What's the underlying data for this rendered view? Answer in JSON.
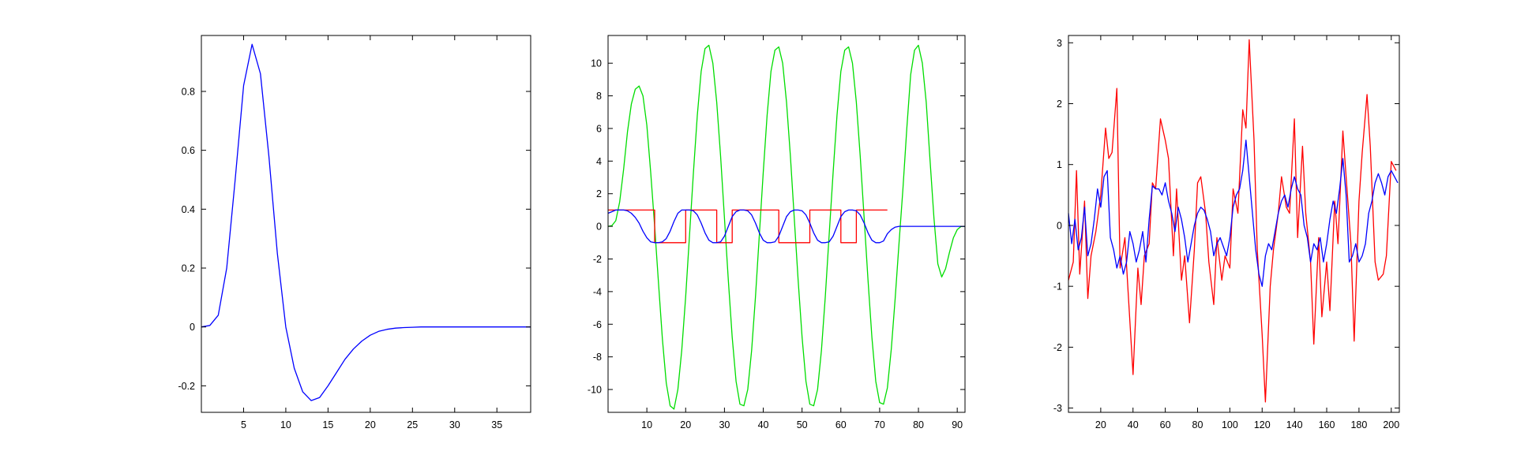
{
  "chart_data": [
    {
      "type": "line",
      "xlim": [
        0,
        39
      ],
      "ylim": [
        -0.29,
        0.99
      ],
      "xticks": [
        5,
        10,
        15,
        20,
        25,
        30,
        35
      ],
      "yticks": [
        -0.2,
        0,
        0.2,
        0.4,
        0.6,
        0.8
      ],
      "ytick_labels": [
        "-0.2",
        "0",
        "0.2",
        "0.4",
        "0.6",
        "0.8"
      ],
      "series": [
        {
          "color": "#0000ff",
          "x": [
            0,
            1,
            2,
            3,
            4,
            5,
            6,
            7,
            8,
            9,
            10,
            11,
            12,
            13,
            14,
            15,
            16,
            17,
            18,
            19,
            20,
            21,
            22,
            23,
            24,
            25,
            26,
            27,
            28,
            29,
            30,
            31,
            32,
            33,
            34,
            35,
            36,
            37,
            38,
            39
          ],
          "y": [
            0.0,
            0.005,
            0.04,
            0.2,
            0.5,
            0.82,
            0.96,
            0.86,
            0.58,
            0.25,
            0.0,
            -0.14,
            -0.22,
            -0.25,
            -0.24,
            -0.2,
            -0.155,
            -0.11,
            -0.075,
            -0.048,
            -0.028,
            -0.015,
            -0.008,
            -0.004,
            -0.002,
            -0.001,
            0,
            0,
            0,
            0,
            0,
            0,
            0,
            0,
            0,
            0,
            0,
            0,
            0,
            0
          ]
        }
      ]
    },
    {
      "type": "line",
      "xlim": [
        0,
        92
      ],
      "ylim": [
        -11.4,
        11.7
      ],
      "xticks": [
        10,
        20,
        30,
        40,
        50,
        60,
        70,
        80,
        90
      ],
      "yticks": [
        -10,
        -8,
        -6,
        -4,
        -2,
        0,
        2,
        4,
        6,
        8,
        10
      ],
      "ytick_labels": [
        "-10",
        "-8",
        "-6",
        "-4",
        "-2",
        "0",
        "2",
        "4",
        "6",
        "8",
        "10"
      ],
      "series": [
        {
          "color": "#00dd00",
          "x": [
            0,
            1,
            2,
            3,
            4,
            5,
            6,
            7,
            8,
            9,
            10,
            11,
            12,
            13,
            14,
            15,
            16,
            17,
            18,
            19,
            20,
            21,
            22,
            23,
            24,
            25,
            26,
            27,
            28,
            29,
            30,
            31,
            32,
            33,
            34,
            35,
            36,
            37,
            38,
            39,
            40,
            41,
            42,
            43,
            44,
            45,
            46,
            47,
            48,
            49,
            50,
            51,
            52,
            53,
            54,
            55,
            56,
            57,
            58,
            59,
            60,
            61,
            62,
            63,
            64,
            65,
            66,
            67,
            68,
            69,
            70,
            71,
            72,
            73,
            74,
            75,
            76,
            77,
            78,
            79,
            80,
            81,
            82,
            83,
            84,
            85,
            86,
            87,
            88,
            89,
            90,
            91,
            92
          ],
          "y": [
            0.0,
            0.05,
            0.35,
            1.5,
            3.5,
            5.8,
            7.5,
            8.4,
            8.6,
            8.0,
            6.2,
            3.3,
            0.0,
            -3.5,
            -6.9,
            -9.6,
            -11.0,
            -11.2,
            -10.0,
            -7.6,
            -4.3,
            -0.5,
            3.3,
            6.8,
            9.5,
            10.9,
            11.1,
            10.0,
            7.6,
            4.3,
            0.5,
            -3.3,
            -6.8,
            -9.5,
            -10.9,
            -11.0,
            -10.0,
            -7.6,
            -4.3,
            -0.5,
            3.3,
            6.8,
            9.5,
            10.8,
            11.0,
            10.0,
            7.6,
            4.3,
            0.5,
            -3.3,
            -6.8,
            -9.5,
            -10.9,
            -11.0,
            -10.0,
            -7.6,
            -4.3,
            -0.5,
            3.3,
            6.8,
            9.5,
            10.8,
            11.0,
            10.0,
            7.6,
            4.3,
            0.5,
            -3.3,
            -6.8,
            -9.5,
            -10.8,
            -10.9,
            -9.9,
            -7.5,
            -4.4,
            -1.0,
            2.3,
            6.0,
            9.3,
            10.8,
            11.1,
            10.0,
            7.6,
            4.0,
            0.5,
            -2.3,
            -3.1,
            -2.6,
            -1.6,
            -0.7,
            -0.2,
            0.0,
            0.0
          ]
        },
        {
          "color": "#ff0000",
          "x": [
            0,
            4,
            4,
            12,
            12,
            16,
            16,
            20,
            20,
            28,
            28,
            32,
            32,
            36,
            36,
            44,
            44,
            48,
            48,
            52,
            52,
            60,
            60,
            64,
            64,
            68,
            68,
            72
          ],
          "y": [
            1,
            1,
            1,
            1,
            -1,
            -1,
            -1,
            -1,
            1,
            1,
            -1,
            -1,
            1,
            1,
            1,
            1,
            -1,
            -1,
            -1,
            -1,
            1,
            1,
            -1,
            -1,
            1,
            1,
            1,
            1
          ]
        },
        {
          "color": "#0000ff",
          "x": [
            0,
            1,
            2,
            3,
            4,
            5,
            6,
            7,
            8,
            9,
            10,
            11,
            12,
            13,
            14,
            15,
            16,
            17,
            18,
            19,
            20,
            21,
            22,
            23,
            24,
            25,
            26,
            27,
            28,
            29,
            30,
            31,
            32,
            33,
            34,
            35,
            36,
            37,
            38,
            39,
            40,
            41,
            42,
            43,
            44,
            45,
            46,
            47,
            48,
            49,
            50,
            51,
            52,
            53,
            54,
            55,
            56,
            57,
            58,
            59,
            60,
            61,
            62,
            63,
            64,
            65,
            66,
            67,
            68,
            69,
            70,
            71,
            72,
            73,
            74,
            75,
            76,
            77,
            78,
            79,
            80,
            81,
            82,
            83,
            84,
            85,
            86,
            87,
            88,
            89,
            90,
            91,
            92
          ],
          "y": [
            0.8,
            0.9,
            1.0,
            1.0,
            1.0,
            0.95,
            0.8,
            0.55,
            0.2,
            -0.3,
            -0.7,
            -0.95,
            -1.0,
            -1.0,
            -0.95,
            -0.75,
            -0.3,
            0.3,
            0.8,
            1.0,
            1.0,
            1.0,
            0.95,
            0.7,
            0.2,
            -0.4,
            -0.85,
            -1.0,
            -1.0,
            -0.95,
            -0.6,
            0.0,
            0.6,
            0.9,
            1.0,
            1.0,
            0.95,
            0.7,
            0.2,
            -0.4,
            -0.85,
            -1.0,
            -1.0,
            -0.95,
            -0.6,
            0.0,
            0.6,
            0.9,
            1.0,
            1.0,
            0.95,
            0.7,
            0.2,
            -0.4,
            -0.85,
            -1.0,
            -1.0,
            -0.95,
            -0.6,
            0.0,
            0.6,
            0.9,
            1.0,
            1.0,
            0.95,
            0.7,
            0.2,
            -0.4,
            -0.85,
            -1.0,
            -1.0,
            -0.9,
            -0.45,
            -0.2,
            -0.05,
            0.0,
            0.0,
            0.0,
            0.0,
            0.0,
            0.0,
            0.0,
            0.0,
            0.0,
            0.0,
            0.0,
            0.0,
            0.0,
            0.0,
            0.0,
            0.0,
            0.0,
            0.0
          ]
        }
      ]
    },
    {
      "type": "line",
      "xlim": [
        0,
        205
      ],
      "ylim": [
        -3.07,
        3.12
      ],
      "xticks": [
        20,
        40,
        60,
        80,
        100,
        120,
        140,
        160,
        180,
        200
      ],
      "yticks": [
        -3,
        -2,
        -1,
        0,
        1,
        2,
        3
      ],
      "ytick_labels": [
        "-3",
        "-2",
        "-1",
        "0",
        "1",
        "2",
        "3"
      ],
      "series": [
        {
          "color": "#ff0000",
          "x": [
            0,
            3,
            5,
            7,
            10,
            12,
            14,
            17,
            20,
            23,
            25,
            27,
            30,
            32,
            35,
            37,
            40,
            43,
            45,
            47,
            50,
            52,
            54,
            57,
            60,
            62,
            65,
            67,
            70,
            72,
            75,
            78,
            80,
            82,
            85,
            87,
            90,
            92,
            95,
            97,
            100,
            102,
            105,
            108,
            110,
            112,
            115,
            117,
            120,
            122,
            125,
            127,
            130,
            132,
            135,
            137,
            140,
            142,
            145,
            147,
            150,
            152,
            155,
            157,
            160,
            162,
            165,
            167,
            170,
            172,
            175,
            177,
            180,
            182,
            185,
            187,
            190,
            192,
            195,
            197,
            200,
            203
          ],
          "y": [
            -0.9,
            -0.6,
            0.9,
            -0.8,
            0.4,
            -1.2,
            -0.5,
            -0.1,
            0.5,
            1.6,
            1.1,
            1.2,
            2.25,
            -0.7,
            -0.2,
            -1.1,
            -2.45,
            -0.7,
            -1.3,
            -0.5,
            -0.3,
            0.7,
            0.6,
            1.75,
            1.4,
            1.1,
            -0.5,
            0.6,
            -0.9,
            -0.5,
            -1.6,
            -0.4,
            0.7,
            0.8,
            0.2,
            -0.6,
            -1.3,
            -0.2,
            -0.9,
            -0.5,
            -0.7,
            0.6,
            0.2,
            1.9,
            1.6,
            3.05,
            1.4,
            -0.4,
            -1.8,
            -2.9,
            -1.0,
            -0.4,
            0.2,
            0.8,
            0.3,
            0.2,
            1.75,
            -0.2,
            1.3,
            0.2,
            -0.6,
            -1.95,
            -0.2,
            -1.5,
            -0.6,
            -1.4,
            0.4,
            -0.3,
            1.55,
            0.8,
            -0.3,
            -1.9,
            0.4,
            1.2,
            2.15,
            1.3,
            -0.6,
            -0.9,
            -0.8,
            -0.5,
            1.05,
            0.9
          ]
        },
        {
          "color": "#0000ff",
          "x": [
            0,
            2,
            4,
            6,
            8,
            10,
            12,
            14,
            16,
            18,
            20,
            22,
            24,
            26,
            28,
            30,
            32,
            34,
            36,
            38,
            40,
            42,
            44,
            46,
            48,
            50,
            52,
            54,
            56,
            58,
            60,
            62,
            64,
            66,
            68,
            70,
            72,
            74,
            76,
            78,
            80,
            82,
            84,
            86,
            88,
            90,
            92,
            94,
            96,
            98,
            100,
            102,
            104,
            106,
            108,
            110,
            112,
            114,
            116,
            118,
            120,
            122,
            124,
            126,
            128,
            130,
            132,
            134,
            136,
            138,
            140,
            142,
            144,
            146,
            148,
            150,
            152,
            154,
            156,
            158,
            160,
            162,
            164,
            166,
            168,
            170,
            172,
            174,
            176,
            178,
            180,
            182,
            184,
            186,
            188,
            190,
            192,
            194,
            196,
            198,
            200,
            202,
            204
          ],
          "y": [
            0.2,
            -0.3,
            0.1,
            -0.4,
            -0.2,
            0.3,
            -0.5,
            -0.3,
            0.1,
            0.6,
            0.3,
            0.8,
            0.9,
            -0.2,
            -0.4,
            -0.7,
            -0.5,
            -0.8,
            -0.6,
            -0.1,
            -0.3,
            -0.6,
            -0.4,
            -0.1,
            -0.6,
            0.1,
            0.65,
            0.6,
            0.6,
            0.5,
            0.7,
            0.4,
            0.2,
            -0.1,
            0.3,
            0.1,
            -0.2,
            -0.6,
            -0.3,
            0.0,
            0.2,
            0.3,
            0.25,
            0.1,
            -0.1,
            -0.5,
            -0.3,
            -0.2,
            -0.35,
            -0.5,
            -0.2,
            0.3,
            0.5,
            0.6,
            0.9,
            1.4,
            0.8,
            0.2,
            -0.4,
            -0.8,
            -1.0,
            -0.5,
            -0.3,
            -0.4,
            -0.1,
            0.2,
            0.4,
            0.5,
            0.3,
            0.6,
            0.8,
            0.6,
            0.5,
            0.0,
            -0.2,
            -0.6,
            -0.3,
            -0.4,
            -0.2,
            -0.6,
            -0.3,
            0.1,
            0.4,
            0.2,
            0.6,
            1.1,
            0.5,
            -0.6,
            -0.5,
            -0.3,
            -0.6,
            -0.5,
            -0.3,
            0.2,
            0.4,
            0.7,
            0.85,
            0.7,
            0.5,
            0.8,
            0.9,
            0.8,
            0.7
          ]
        }
      ]
    }
  ]
}
